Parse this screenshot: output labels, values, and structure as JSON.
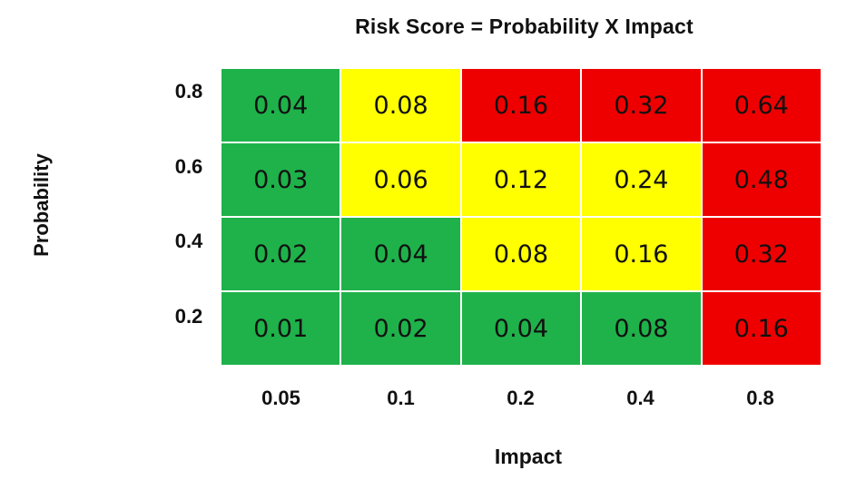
{
  "chart_data": {
    "type": "heatmap",
    "title": "Risk Score = Probability X  Impact",
    "xlabel": "Impact",
    "ylabel": "Probability",
    "x_ticks": [
      "0.05",
      "0.1",
      "0.2",
      "0.4",
      "0.8"
    ],
    "y_ticks": [
      "0.8",
      "0.6",
      "0.4",
      "0.2"
    ],
    "cells": [
      [
        {
          "value": "0.04",
          "color": "#1fb24a"
        },
        {
          "value": "0.08",
          "color": "#ffff00"
        },
        {
          "value": "0.16",
          "color": "#ee0000"
        },
        {
          "value": "0.32",
          "color": "#ee0000"
        },
        {
          "value": "0.64",
          "color": "#ee0000"
        }
      ],
      [
        {
          "value": "0.03",
          "color": "#1fb24a"
        },
        {
          "value": "0.06",
          "color": "#ffff00"
        },
        {
          "value": "0.12",
          "color": "#ffff00"
        },
        {
          "value": "0.24",
          "color": "#ffff00"
        },
        {
          "value": "0.48",
          "color": "#ee0000"
        }
      ],
      [
        {
          "value": "0.02",
          "color": "#1fb24a"
        },
        {
          "value": "0.04",
          "color": "#1fb24a"
        },
        {
          "value": "0.08",
          "color": "#ffff00"
        },
        {
          "value": "0.16",
          "color": "#ffff00"
        },
        {
          "value": "0.32",
          "color": "#ee0000"
        }
      ],
      [
        {
          "value": "0.01",
          "color": "#1fb24a"
        },
        {
          "value": "0.02",
          "color": "#1fb24a"
        },
        {
          "value": "0.04",
          "color": "#1fb24a"
        },
        {
          "value": "0.08",
          "color": "#1fb24a"
        },
        {
          "value": "0.16",
          "color": "#ee0000"
        }
      ]
    ]
  }
}
